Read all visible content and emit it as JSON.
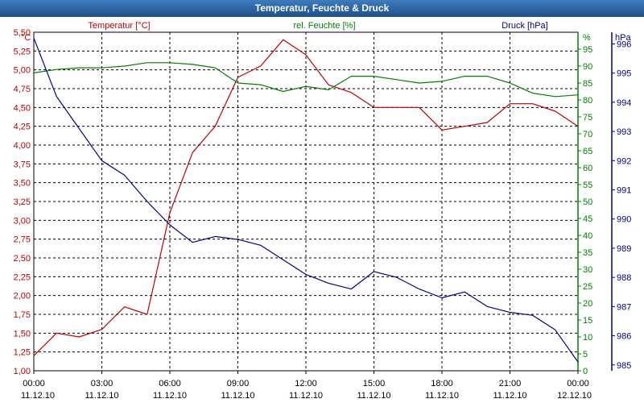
{
  "chart_data": {
    "type": "line",
    "title": "Temperatur, Feuchte & Druck",
    "x": [
      "00:00",
      "01:00",
      "02:00",
      "03:00",
      "04:00",
      "05:00",
      "06:00",
      "07:00",
      "08:00",
      "09:00",
      "10:00",
      "11:00",
      "12:00",
      "13:00",
      "14:00",
      "15:00",
      "16:00",
      "17:00",
      "18:00",
      "19:00",
      "20:00",
      "21:00",
      "22:00",
      "23:00",
      "24:00"
    ],
    "x_tick_labels": [
      {
        "time": "00:00",
        "date": "11.12.10"
      },
      {
        "time": "03:00",
        "date": "11.12.10"
      },
      {
        "time": "06:00",
        "date": "11.12.10"
      },
      {
        "time": "09:00",
        "date": "11.12.10"
      },
      {
        "time": "12:00",
        "date": "11.12.10"
      },
      {
        "time": "15:00",
        "date": "11.12.10"
      },
      {
        "time": "18:00",
        "date": "11.12.10"
      },
      {
        "time": "21:00",
        "date": "11.12.10"
      },
      {
        "time": "00:00",
        "date": "12.12.10"
      }
    ],
    "axes": {
      "temperature": {
        "label": "Temperatur [°C]",
        "unit": "°C",
        "color": "#c00000",
        "range": [
          1.0,
          5.5
        ],
        "ticks": [
          "1,00",
          "1,25",
          "1,50",
          "1,75",
          "2,00",
          "2,25",
          "2,50",
          "2,75",
          "3,00",
          "3,25",
          "3,50",
          "3,75",
          "4,00",
          "4,25",
          "4,50",
          "4,75",
          "5,00",
          "5,25",
          "5,50"
        ]
      },
      "humidity": {
        "label": "rel. Feuchte [%]",
        "unit": "%",
        "color": "#008000",
        "range": [
          0,
          100
        ],
        "ticks": [
          "0",
          "5",
          "10",
          "15",
          "20",
          "25",
          "30",
          "35",
          "40",
          "45",
          "50",
          "55",
          "60",
          "65",
          "70",
          "75",
          "80",
          "85",
          "90",
          "95"
        ]
      },
      "pressure": {
        "label": "Druck [hPa]",
        "unit": "hPa",
        "color": "#00008b",
        "range": [
          984.8,
          996.4
        ],
        "ticks": [
          "985",
          "986",
          "987",
          "988",
          "989",
          "990",
          "991",
          "992",
          "993",
          "994",
          "995",
          "996"
        ]
      }
    },
    "series": [
      {
        "name": "Temperatur",
        "axis": "temperature",
        "values": [
          1.2,
          1.5,
          1.45,
          1.55,
          1.85,
          1.75,
          3.1,
          3.9,
          4.25,
          4.9,
          5.05,
          5.4,
          5.2,
          4.8,
          4.7,
          4.5,
          4.5,
          4.5,
          4.2,
          4.25,
          4.3,
          4.55,
          4.55,
          4.45,
          4.25
        ]
      },
      {
        "name": "rel. Feuchte",
        "axis": "humidity",
        "values": [
          88,
          89,
          89.5,
          89.5,
          90,
          91,
          91,
          90.5,
          89.5,
          85,
          84.5,
          82.5,
          84,
          83,
          87,
          87,
          86,
          85,
          85.5,
          87,
          87,
          85,
          82,
          81,
          81.5
        ]
      },
      {
        "name": "Druck",
        "axis": "pressure",
        "values": [
          996.2,
          994.2,
          993.1,
          992.0,
          991.5,
          990.6,
          989.8,
          989.2,
          989.4,
          989.3,
          989.1,
          988.6,
          988.1,
          987.8,
          987.6,
          988.2,
          988.0,
          987.6,
          987.3,
          987.5,
          987.0,
          986.8,
          986.7,
          986.2,
          985.1
        ]
      }
    ],
    "grid": true
  }
}
